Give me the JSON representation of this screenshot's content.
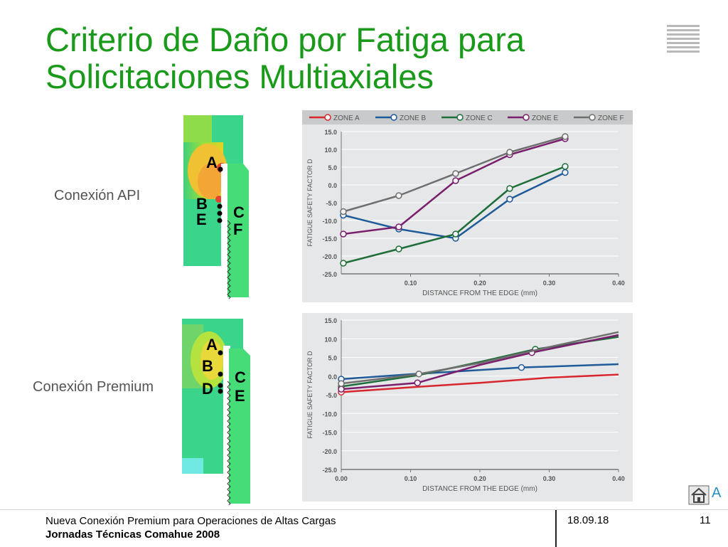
{
  "slide": {
    "title_line1": "Criterio de Daño por Fatiga para",
    "title_line2": "Solicitaciones Multiaxiales",
    "section_api": "Conexión API",
    "section_premium": "Conexión Premium",
    "api_points": [
      "A",
      "B",
      "E",
      "C",
      "F"
    ],
    "premium_points": [
      "A",
      "B",
      "D",
      "C",
      "E"
    ],
    "home_letter": "A",
    "home_icon": "home-icon"
  },
  "footer": {
    "line1": "Nueva Conexión Premium para Operaciones de Altas Cargas",
    "line2": "Jornadas Técnicas Comahue 2008",
    "date": "18.09.18",
    "page": "11"
  },
  "chart_data": [
    {
      "type": "line",
      "ylabel": "FATIGUE SAFETY FACTOR D",
      "xlabel": "DISTANCE FROM THE EDGE (mm)",
      "xlim": [
        0.0,
        0.4
      ],
      "ylim": [
        -25,
        15
      ],
      "x_ticks": [
        "0.10",
        "0.20",
        "0.30",
        "0.40"
      ],
      "y_ticks": [
        "15.0",
        "10.0",
        "5.0",
        "0.0",
        "-5.0",
        "-10.0",
        "-15.0",
        "-20.0",
        "-25.0"
      ],
      "grid": true,
      "legend": "top",
      "series": [
        {
          "name": "ZONE A",
          "color": "#d8262e",
          "points": []
        },
        {
          "name": "ZONE B",
          "color": "#1f5a99",
          "points": [
            [
              0.003,
              -8.5
            ],
            [
              0.083,
              -12.4
            ],
            [
              0.165,
              -15.0
            ],
            [
              0.243,
              -4.0
            ],
            [
              0.323,
              3.5
            ]
          ]
        },
        {
          "name": "ZONE C",
          "color": "#1e6e3a",
          "points": [
            [
              0.003,
              -22.0
            ],
            [
              0.083,
              -18.0
            ],
            [
              0.165,
              -13.8
            ],
            [
              0.243,
              -1.0
            ],
            [
              0.323,
              5.2
            ]
          ]
        },
        {
          "name": "ZONE E",
          "color": "#7a1f6e",
          "points": [
            [
              0.003,
              -13.8
            ],
            [
              0.083,
              -11.8
            ],
            [
              0.165,
              1.2
            ],
            [
              0.243,
              8.5
            ],
            [
              0.323,
              13.0
            ]
          ]
        },
        {
          "name": "ZONE F",
          "color": "#6f6f6f",
          "points": [
            [
              0.003,
              -7.5
            ],
            [
              0.083,
              -3.0
            ],
            [
              0.165,
              3.2
            ],
            [
              0.243,
              9.2
            ],
            [
              0.323,
              13.6
            ]
          ]
        }
      ]
    },
    {
      "type": "line",
      "ylabel": "FATIGUE SAFETY FACTOR D",
      "xlabel": "DISTANCE FROM THE EDGE (mm)",
      "xlim": [
        0.0,
        0.4
      ],
      "ylim": [
        -25,
        15
      ],
      "x_ticks": [
        "0.00",
        "0.10",
        "0.20",
        "0.30",
        "0.40"
      ],
      "y_ticks": [
        "15.0",
        "10.0",
        "5.0",
        "0.0",
        "-5.0",
        "-10.0",
        "-15.0",
        "-20.0",
        "-25.0"
      ],
      "grid": true,
      "series": [
        {
          "name": "ZONE A",
          "color": "#d8262e",
          "points": [
            [
              0.0,
              -4.3
            ],
            [
              0.1,
              -3.0
            ],
            [
              0.2,
              -1.8
            ],
            [
              0.3,
              -0.4
            ],
            [
              0.4,
              0.4
            ]
          ],
          "markers": [
            0.0
          ]
        },
        {
          "name": "ZONE B",
          "color": "#1f5a99",
          "points": [
            [
              0.0,
              -0.8
            ],
            [
              0.1,
              0.5
            ],
            [
              0.26,
              2.3
            ],
            [
              0.4,
              3.2
            ]
          ],
          "markers": [
            0.0,
            0.26
          ]
        },
        {
          "name": "ZONE C",
          "color": "#1e6e3a",
          "points": [
            [
              0.0,
              -2.8
            ],
            [
              0.11,
              0.2
            ],
            [
              0.2,
              3.8
            ],
            [
              0.28,
              7.2
            ],
            [
              0.4,
              10.5
            ]
          ],
          "markers": [
            0.0,
            0.28
          ]
        },
        {
          "name": "ZONE E",
          "color": "#7a1f6e",
          "points": [
            [
              0.0,
              -3.5
            ],
            [
              0.11,
              -1.8
            ],
            [
              0.2,
              3.0
            ],
            [
              0.28,
              6.5
            ],
            [
              0.4,
              11.0
            ]
          ],
          "markers": [
            0.0,
            0.11,
            0.275
          ]
        },
        {
          "name": "ZONE F",
          "color": "#6f6f6f",
          "points": [
            [
              0.0,
              -2.0
            ],
            [
              0.11,
              0.5
            ],
            [
              0.2,
              3.5
            ],
            [
              0.3,
              7.8
            ],
            [
              0.4,
              11.8
            ]
          ],
          "markers": [
            0.0,
            0.112
          ]
        }
      ]
    }
  ]
}
